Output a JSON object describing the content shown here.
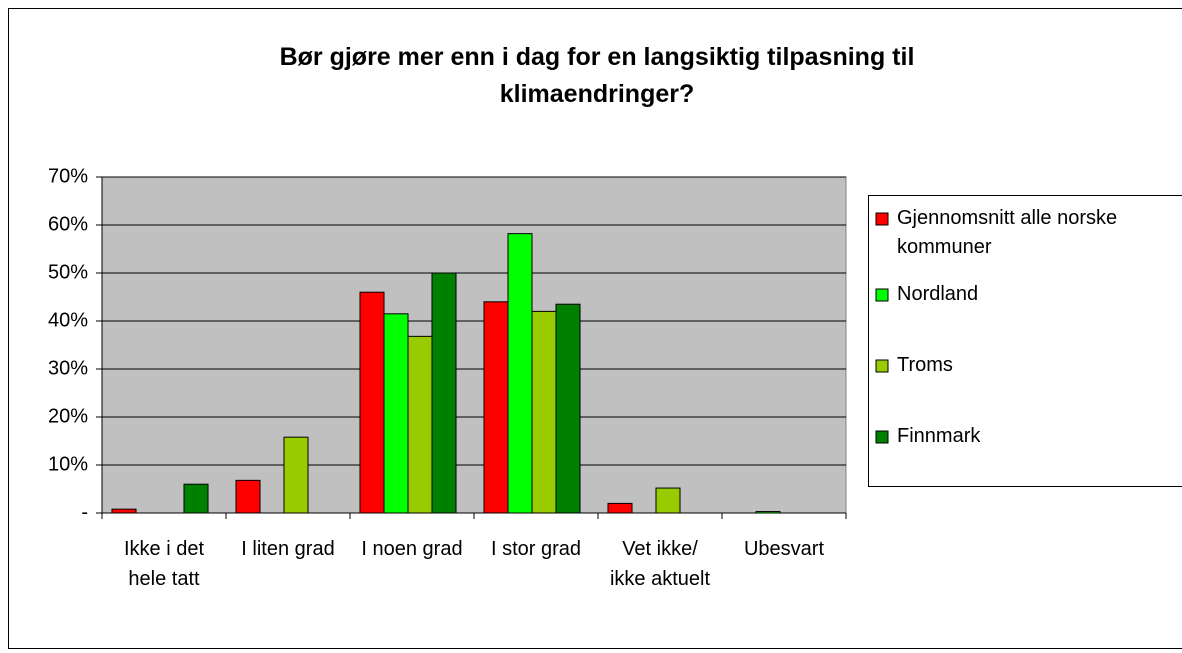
{
  "chart_data": {
    "type": "bar",
    "title": "Bør gjøre mer enn i dag for en langsiktig tilpasning til klimaendringer?",
    "categories": [
      "Ikke i det hele tatt",
      "I liten grad",
      "I noen grad",
      "I stor grad",
      "Vet ikke/ ikke aktuelt",
      "Ubesvart"
    ],
    "series": [
      {
        "name": "Gjennomsnitt alle norske kommuner",
        "color": "#ff0000",
        "values": [
          0.8,
          6.8,
          46,
          44,
          2,
          0
        ]
      },
      {
        "name": "Nordland",
        "color": "#00ff00",
        "values": [
          0,
          0,
          41.5,
          58.2,
          0,
          0.3
        ]
      },
      {
        "name": "Troms",
        "color": "#99cc00",
        "values": [
          0,
          15.8,
          36.8,
          42,
          5.2,
          0
        ]
      },
      {
        "name": "Finnmark",
        "color": "#008000",
        "values": [
          6,
          0,
          50,
          43.5,
          0,
          0
        ]
      }
    ],
    "ylim": [
      0,
      70
    ],
    "yticks": [
      {
        "value": 0,
        "label": "-"
      },
      {
        "value": 10,
        "label": "10%"
      },
      {
        "value": 20,
        "label": "20%"
      },
      {
        "value": 30,
        "label": "30%"
      },
      {
        "value": 40,
        "label": "40%"
      },
      {
        "value": 50,
        "label": "50%"
      },
      {
        "value": 60,
        "label": "60%"
      },
      {
        "value": 70,
        "label": "70%"
      }
    ],
    "grid": true,
    "legend": "right",
    "plot_background": "#c0c0c0"
  }
}
